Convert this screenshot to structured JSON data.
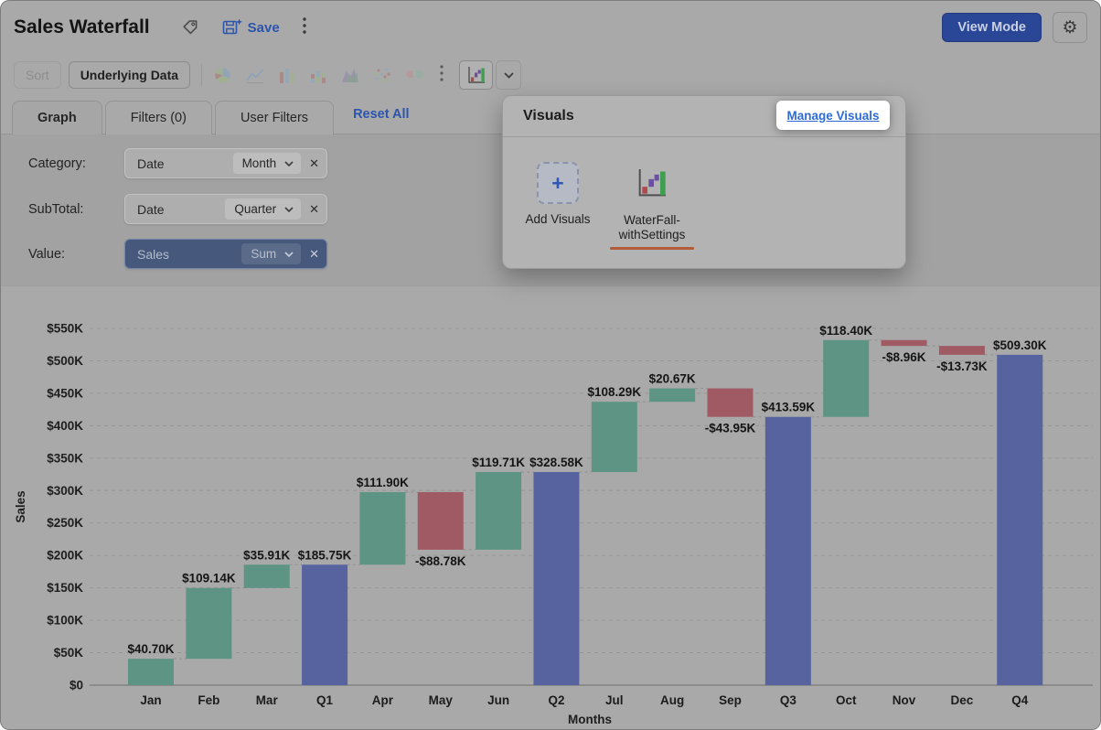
{
  "header": {
    "title": "Sales Waterfall",
    "save_label": "Save",
    "view_mode_label": "View Mode",
    "icons": [
      "tag-icon",
      "save-icon",
      "more-vertical-icon",
      "gear-icon"
    ]
  },
  "toolbar": {
    "sort_label": "Sort",
    "underlying_data_label": "Underlying Data",
    "chart_icons": [
      "pie-chart",
      "line-chart",
      "bar-chart",
      "stacked-bar-chart",
      "combination-chart",
      "scatter-chart",
      "map-chart"
    ],
    "more_icon": "more-vertical-icon",
    "selected_visual_icon": "waterfall-chart",
    "dropdown_icon": "chevron-down"
  },
  "tabs": {
    "items": [
      {
        "label": "Graph",
        "active": true
      },
      {
        "label": "Filters (0)",
        "active": false
      },
      {
        "label": "User Filters",
        "active": false
      }
    ],
    "reset_all_label": "Reset All"
  },
  "fields": [
    {
      "label": "Category:",
      "column": "Date",
      "agg": "Month",
      "selected": false
    },
    {
      "label": "SubTotal:",
      "column": "Date",
      "agg": "Quarter",
      "selected": false
    },
    {
      "label": "Value:",
      "column": "Sales",
      "agg": "Sum",
      "selected": true
    }
  ],
  "visuals_popup": {
    "title": "Visuals",
    "manage_label": "Manage Visuals",
    "add_label": "Add Visuals",
    "item": {
      "line1": "WaterFall-",
      "line2": "withSettings",
      "icon": "waterfall-visual-icon"
    }
  },
  "colors": {
    "accent_blue": "#2c55ae",
    "manage_link_blue": "#2e6bd6",
    "view_mode_bg": "#2a4697",
    "selected_pill_bg": "#46597c",
    "annotation_orange": "#b35c39"
  },
  "chart_data": {
    "type": "waterfall",
    "xlabel": "Months",
    "ylabel": "Sales",
    "units": "USD thousands",
    "grid": "dashed-horizontal",
    "y_axis": {
      "min": 0,
      "max": 550,
      "step": 50,
      "tick_labels": [
        "$0",
        "$50K",
        "$100K",
        "$150K",
        "$200K",
        "$250K",
        "$300K",
        "$350K",
        "$400K",
        "$450K",
        "$500K",
        "$550K"
      ]
    },
    "colors": {
      "positive": "#5e9483",
      "negative": "#a05a63",
      "total": "#56639f"
    },
    "items": [
      {
        "label": "Jan",
        "value": 40.7,
        "kind": "delta",
        "display": "$40.70K"
      },
      {
        "label": "Feb",
        "value": 109.14,
        "kind": "delta",
        "display": "$109.14K"
      },
      {
        "label": "Mar",
        "value": 35.91,
        "kind": "delta",
        "display": "$35.91K"
      },
      {
        "label": "Q1",
        "value": 185.75,
        "kind": "total",
        "display": "$185.75K"
      },
      {
        "label": "Apr",
        "value": 111.9,
        "kind": "delta",
        "display": "$111.90K"
      },
      {
        "label": "May",
        "value": -88.78,
        "kind": "delta",
        "display": "-$88.78K"
      },
      {
        "label": "Jun",
        "value": 119.71,
        "kind": "delta",
        "display": "$119.71K"
      },
      {
        "label": "Q2",
        "value": 328.58,
        "kind": "total",
        "display": "$328.58K"
      },
      {
        "label": "Jul",
        "value": 108.29,
        "kind": "delta",
        "display": "$108.29K"
      },
      {
        "label": "Aug",
        "value": 20.67,
        "kind": "delta",
        "display": "$20.67K"
      },
      {
        "label": "Sep",
        "value": -43.95,
        "kind": "delta",
        "display": "-$43.95K"
      },
      {
        "label": "Q3",
        "value": 413.59,
        "kind": "total",
        "display": "$413.59K"
      },
      {
        "label": "Oct",
        "value": 118.4,
        "kind": "delta",
        "display": "$118.40K"
      },
      {
        "label": "Nov",
        "value": -8.96,
        "kind": "delta",
        "display": "-$8.96K"
      },
      {
        "label": "Dec",
        "value": -13.73,
        "kind": "delta",
        "display": "-$13.73K"
      },
      {
        "label": "Q4",
        "value": 509.3,
        "kind": "total",
        "display": "$509.30K"
      }
    ]
  }
}
